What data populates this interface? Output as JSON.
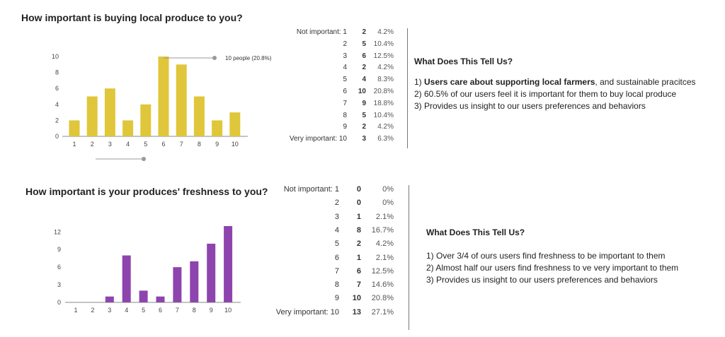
{
  "colors": {
    "bar1": "#e0c63a",
    "bar2": "#8e44ad",
    "axis": "#888888",
    "tooltip": "#999999"
  },
  "chart_data": [
    {
      "type": "bar",
      "title": "How important is buying local produce to you?",
      "categories": [
        "1",
        "2",
        "3",
        "4",
        "5",
        "6",
        "7",
        "8",
        "9",
        "10"
      ],
      "values": [
        2,
        5,
        6,
        2,
        4,
        10,
        9,
        5,
        2,
        3
      ],
      "yticks": [
        0,
        2,
        4,
        6,
        8,
        10
      ],
      "ylim": [
        0,
        10
      ],
      "annotation": "10 people (20.8%)",
      "grid": false
    },
    {
      "type": "bar",
      "title": "How important is your produces' freshness to you?",
      "categories": [
        "1",
        "2",
        "3",
        "4",
        "5",
        "6",
        "7",
        "8",
        "9",
        "10"
      ],
      "values": [
        0,
        0,
        1,
        8,
        2,
        1,
        6,
        7,
        10,
        13
      ],
      "yticks": [
        0,
        3,
        6,
        9,
        12
      ],
      "ylim": [
        0,
        13
      ],
      "grid": false
    }
  ],
  "table1": [
    {
      "label": "Not important: 1",
      "count": "2",
      "pct": "4.2%"
    },
    {
      "label": "2",
      "count": "5",
      "pct": "10.4%"
    },
    {
      "label": "3",
      "count": "6",
      "pct": "12.5%"
    },
    {
      "label": "4",
      "count": "2",
      "pct": "4.2%"
    },
    {
      "label": "5",
      "count": "4",
      "pct": "8.3%"
    },
    {
      "label": "6",
      "count": "10",
      "pct": "20.8%"
    },
    {
      "label": "7",
      "count": "9",
      "pct": "18.8%"
    },
    {
      "label": "8",
      "count": "5",
      "pct": "10.4%"
    },
    {
      "label": "9",
      "count": "2",
      "pct": "4.2%"
    },
    {
      "label": "Very important: 10",
      "count": "3",
      "pct": "6.3%"
    }
  ],
  "table2": [
    {
      "label": "Not important: 1",
      "count": "0",
      "pct": "0%"
    },
    {
      "label": "2",
      "count": "0",
      "pct": "0%"
    },
    {
      "label": "3",
      "count": "1",
      "pct": "2.1%"
    },
    {
      "label": "4",
      "count": "8",
      "pct": "16.7%"
    },
    {
      "label": "5",
      "count": "2",
      "pct": "4.2%"
    },
    {
      "label": "6",
      "count": "1",
      "pct": "2.1%"
    },
    {
      "label": "7",
      "count": "6",
      "pct": "12.5%"
    },
    {
      "label": "8",
      "count": "7",
      "pct": "14.6%"
    },
    {
      "label": "9",
      "count": "10",
      "pct": "20.8%"
    },
    {
      "label": "Very important: 10",
      "count": "13",
      "pct": "27.1%"
    }
  ],
  "insight1": {
    "heading": "What Does This Tell Us?",
    "line1_num": "1) ",
    "line1_bold": "Users care about supporting local farmers",
    "line1_rest": ", and sustainable pracitces",
    "line2": "2)  60.5% of our users feel it is important for them to buy local produce",
    "line3": "3)  Provides us insight to our users preferences and behaviors"
  },
  "insight2": {
    "heading": "What Does This Tell Us?",
    "line1": "1)  Over 3/4 of ours users find freshness to be important to them",
    "line2": "2)  Almost half our users find freshness to ve very important to them",
    "line3": "3)  Provides us insight to our users preferences and behaviors"
  }
}
